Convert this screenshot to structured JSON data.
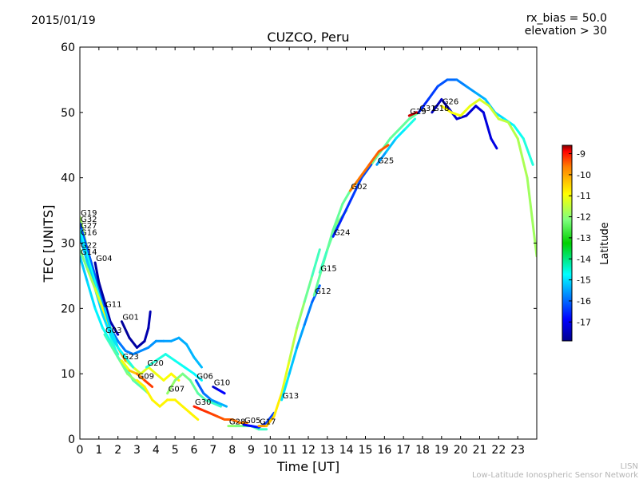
{
  "header": {
    "date": "2015/01/19",
    "rx_bias": "rx_bias = 50.0",
    "elevation": "elevation > 30"
  },
  "footer": {
    "line1": "LISN",
    "line2": "Low-Latitude Ionospheric Sensor Network"
  },
  "colors": {
    "colormap": [
      "#00008f",
      "#0000ff",
      "#007fff",
      "#00ffff",
      "#7fff7f",
      "#ffff00",
      "#ff7f00",
      "#ff0000",
      "#7f0000"
    ],
    "footer_text": "#b4b4b4"
  },
  "chart_data": {
    "type": "line",
    "title": "CUZCO, Peru",
    "xlabel": "Time [UT]",
    "ylabel": "TEC [UNITS]",
    "xlim": [
      0,
      24
    ],
    "ylim": [
      0,
      60
    ],
    "xticks": [
      "0",
      "1",
      "2",
      "3",
      "4",
      "5",
      "6",
      "7",
      "8",
      "9",
      "10",
      "11",
      "12",
      "13",
      "14",
      "15",
      "16",
      "17",
      "18",
      "19",
      "20",
      "21",
      "22",
      "23"
    ],
    "yticks": [
      "0",
      "10",
      "20",
      "30",
      "40",
      "50",
      "60"
    ],
    "colorbar": {
      "label": "Latitude",
      "range": [
        -17.9,
        -8.6
      ],
      "ticks": [
        "-9",
        "-10",
        "-11",
        "-12",
        "-13",
        "-14",
        "-15",
        "-16",
        "-17"
      ]
    },
    "series": [
      {
        "name": "G19",
        "lat_start": -13.0,
        "lat_end": -12.0,
        "points": [
          [
            0,
            34
          ],
          [
            0.4,
            29
          ],
          [
            0.8,
            25
          ],
          [
            1.2,
            21
          ],
          [
            1.6,
            17
          ],
          [
            2.0,
            14
          ],
          [
            2.4,
            12
          ],
          [
            2.8,
            11
          ],
          [
            3.2,
            10
          ],
          [
            3.6,
            11
          ],
          [
            4.0,
            10
          ],
          [
            4.4,
            9
          ],
          [
            4.8,
            10
          ],
          [
            5.2,
            9
          ]
        ]
      },
      {
        "name": "G32",
        "lat_start": -16.0,
        "lat_end": -15.0,
        "points": [
          [
            0,
            33
          ],
          [
            0.4,
            29
          ],
          [
            0.8,
            25
          ],
          [
            1.2,
            21
          ],
          [
            1.6,
            17
          ],
          [
            2.0,
            15
          ],
          [
            2.4,
            13.5
          ],
          [
            2.8,
            13
          ],
          [
            3.2,
            13.5
          ],
          [
            3.6,
            14
          ],
          [
            4.0,
            15
          ],
          [
            4.4,
            15
          ],
          [
            4.8,
            15
          ],
          [
            5.2,
            15.5
          ],
          [
            5.6,
            14.5
          ],
          [
            6.0,
            12.5
          ],
          [
            6.4,
            11
          ]
        ]
      },
      {
        "name": "G27",
        "lat_start": -14.5,
        "lat_end": -13.5,
        "points": [
          [
            0,
            32
          ],
          [
            0.4,
            28
          ],
          [
            0.8,
            24
          ],
          [
            1.2,
            20
          ],
          [
            1.6,
            16
          ],
          [
            2.0,
            12.5
          ],
          [
            2.4,
            11
          ],
          [
            2.8,
            9
          ],
          [
            3.2,
            8
          ],
          [
            3.6,
            7
          ]
        ]
      },
      {
        "name": "G16",
        "lat_start": -15.0,
        "lat_end": -14.5,
        "points": [
          [
            0,
            31
          ],
          [
            0.4,
            27
          ],
          [
            0.8,
            23
          ],
          [
            1.2,
            19
          ],
          [
            1.6,
            16
          ],
          [
            2.0,
            14
          ],
          [
            2.4,
            12
          ]
        ]
      },
      {
        "name": "G22",
        "lat_start": -13.5,
        "lat_end": -11.0,
        "points": [
          [
            0,
            29
          ],
          [
            0.4,
            26
          ],
          [
            0.8,
            23
          ],
          [
            1.2,
            20
          ],
          [
            1.6,
            17
          ],
          [
            2.0,
            14
          ],
          [
            2.4,
            12
          ]
        ]
      },
      {
        "name": "G14",
        "lat_start": -15.0,
        "lat_end": -14.0,
        "points": [
          [
            0,
            28
          ],
          [
            0.4,
            24
          ],
          [
            0.8,
            20
          ],
          [
            1.2,
            17
          ],
          [
            1.6,
            15
          ],
          [
            2.0,
            13
          ]
        ]
      },
      {
        "name": "G04",
        "lat_start": -17.8,
        "lat_end": -17.5,
        "points": [
          [
            0.8,
            27
          ],
          [
            1.0,
            24
          ],
          [
            1.3,
            21
          ],
          [
            1.6,
            18
          ],
          [
            2.0,
            16
          ]
        ]
      },
      {
        "name": "G11",
        "lat_start": -15.0,
        "lat_end": -14.0,
        "points": [
          [
            1.3,
            20
          ],
          [
            1.6,
            17
          ],
          [
            2.0,
            14
          ],
          [
            2.4,
            12.5
          ],
          [
            2.8,
            11
          ]
        ]
      },
      {
        "name": "G01",
        "lat_start": -17.8,
        "lat_end": -17.5,
        "points": [
          [
            2.2,
            18
          ],
          [
            2.6,
            15.5
          ],
          [
            3.0,
            14
          ],
          [
            3.4,
            15
          ],
          [
            3.6,
            17
          ],
          [
            3.7,
            19.5
          ]
        ]
      },
      {
        "name": "G03",
        "lat_start": -14.0,
        "lat_end": -13.0,
        "points": [
          [
            1.3,
            16
          ],
          [
            1.7,
            14
          ],
          [
            2.1,
            12
          ],
          [
            2.5,
            10
          ],
          [
            2.9,
            9
          ]
        ]
      },
      {
        "name": "G23",
        "lat_start": -12.5,
        "lat_end": -10.0,
        "points": [
          [
            2.2,
            12
          ],
          [
            2.6,
            10.5
          ],
          [
            3.0,
            10
          ],
          [
            3.4,
            9
          ],
          [
            3.8,
            8
          ]
        ]
      },
      {
        "name": "G09",
        "lat_start": -12.0,
        "lat_end": -12.0,
        "points": [
          [
            3.0,
            9
          ],
          [
            3.4,
            8
          ],
          [
            3.8,
            6
          ],
          [
            4.2,
            5
          ],
          [
            4.6,
            6
          ],
          [
            5.0,
            6
          ],
          [
            5.4,
            5
          ],
          [
            5.8,
            4
          ],
          [
            6.2,
            3
          ]
        ]
      },
      {
        "name": "G20",
        "lat_start": -14.0,
        "lat_end": -14.5,
        "points": [
          [
            3.5,
            11
          ],
          [
            4.0,
            12
          ],
          [
            4.5,
            13
          ],
          [
            5.0,
            12
          ],
          [
            5.5,
            11
          ],
          [
            6.0,
            10
          ],
          [
            6.4,
            9
          ]
        ]
      },
      {
        "name": "G07",
        "lat_start": -13.0,
        "lat_end": -14.0,
        "points": [
          [
            4.6,
            7
          ],
          [
            5.0,
            9
          ],
          [
            5.4,
            10
          ],
          [
            5.8,
            9
          ],
          [
            6.2,
            7
          ],
          [
            6.6,
            6
          ],
          [
            7.0,
            5.5
          ],
          [
            7.4,
            5
          ]
        ]
      },
      {
        "name": "G06",
        "lat_start": -16.0,
        "lat_end": -15.0,
        "points": [
          [
            6.1,
            9
          ],
          [
            6.5,
            7
          ],
          [
            6.9,
            6
          ],
          [
            7.3,
            5.5
          ],
          [
            7.7,
            5
          ]
        ]
      },
      {
        "name": "G10",
        "lat_start": -17.5,
        "lat_end": -16.5,
        "points": [
          [
            7.0,
            8
          ],
          [
            7.3,
            7.5
          ],
          [
            7.6,
            7
          ]
        ]
      },
      {
        "name": "G30",
        "lat_start": -10.0,
        "lat_end": -11.0,
        "points": [
          [
            6.0,
            5
          ],
          [
            6.4,
            4.5
          ],
          [
            6.8,
            4
          ],
          [
            7.2,
            3.5
          ],
          [
            7.6,
            3
          ],
          [
            8.0,
            3
          ],
          [
            8.4,
            2.5
          ],
          [
            8.8,
            2.5
          ]
        ]
      },
      {
        "name": "G28",
        "lat_start": -13.0,
        "lat_end": -14.0,
        "points": [
          [
            7.8,
            2
          ],
          [
            8.2,
            2
          ],
          [
            8.6,
            2
          ],
          [
            9.0,
            2
          ],
          [
            9.4,
            1.5
          ],
          [
            9.8,
            1.5
          ]
        ]
      },
      {
        "name": "G05",
        "lat_start": -17.0,
        "lat_end": -16.0,
        "points": [
          [
            8.6,
            2.2
          ],
          [
            9.0,
            2.0
          ],
          [
            9.4,
            1.8
          ],
          [
            9.8,
            2.5
          ],
          [
            10.2,
            4
          ]
        ]
      },
      {
        "name": "G17",
        "lat_start": -11.0,
        "lat_end": -14.0,
        "points": [
          [
            9.4,
            2
          ],
          [
            9.8,
            2
          ],
          [
            10.2,
            3.5
          ],
          [
            10.6,
            7
          ],
          [
            11.0,
            12
          ],
          [
            11.4,
            17
          ],
          [
            11.8,
            21
          ],
          [
            12.2,
            25
          ],
          [
            12.6,
            29
          ]
        ]
      },
      {
        "name": "G13",
        "lat_start": -14.5,
        "lat_end": -16.0,
        "points": [
          [
            10.6,
            6
          ],
          [
            11.0,
            10
          ],
          [
            11.4,
            14
          ],
          [
            11.8,
            17.5
          ],
          [
            12.2,
            21
          ],
          [
            12.6,
            23.5
          ]
        ]
      },
      {
        "name": "G12",
        "lat_start": -13.5,
        "lat_end": -13.5,
        "points": [
          [
            12.3,
            22
          ],
          [
            12.8,
            27
          ],
          [
            13.3,
            32
          ],
          [
            13.8,
            36
          ],
          [
            14.3,
            38.5
          ],
          [
            14.8,
            40
          ],
          [
            15.3,
            42
          ],
          [
            15.8,
            44
          ],
          [
            16.3,
            46
          ],
          [
            16.8,
            47.5
          ],
          [
            17.3,
            49
          ],
          [
            17.8,
            50
          ]
        ]
      },
      {
        "name": "G15",
        "lat_start": -14.0,
        "lat_end": -13.0,
        "points": [
          [
            12.6,
            25.5
          ],
          [
            13.0,
            29
          ],
          [
            13.5,
            33
          ],
          [
            14.0,
            35
          ]
        ]
      },
      {
        "name": "G24",
        "lat_start": -16.5,
        "lat_end": -16.0,
        "points": [
          [
            13.3,
            31
          ],
          [
            13.8,
            34
          ],
          [
            14.3,
            37
          ],
          [
            14.8,
            40
          ],
          [
            15.3,
            42
          ]
        ]
      },
      {
        "name": "G02",
        "lat_start": -11.0,
        "lat_end": -10.5,
        "points": [
          [
            14.2,
            38
          ],
          [
            14.7,
            40
          ],
          [
            15.2,
            42
          ],
          [
            15.7,
            44
          ],
          [
            16.2,
            45
          ]
        ]
      },
      {
        "name": "G25",
        "lat_start": -15.5,
        "lat_end": -14.0,
        "points": [
          [
            15.6,
            42
          ],
          [
            16.1,
            44
          ],
          [
            16.6,
            46
          ],
          [
            17.1,
            47.5
          ],
          [
            17.6,
            49
          ]
        ]
      },
      {
        "name": "G29",
        "lat_start": -9.5,
        "lat_end": -9.0,
        "points": [
          [
            17.3,
            49.5
          ],
          [
            17.7,
            50
          ]
        ]
      },
      {
        "name": "G31",
        "lat_start": -16.5,
        "lat_end": -14.0,
        "points": [
          [
            17.8,
            50
          ],
          [
            18.3,
            52
          ],
          [
            18.8,
            54
          ],
          [
            19.3,
            55
          ],
          [
            19.8,
            55
          ],
          [
            20.3,
            54
          ],
          [
            20.8,
            53
          ],
          [
            21.3,
            52
          ],
          [
            21.8,
            50
          ],
          [
            22.3,
            49
          ],
          [
            22.8,
            48
          ],
          [
            23.3,
            46
          ],
          [
            23.8,
            42
          ]
        ]
      },
      {
        "name": "G18",
        "lat_start": -17.5,
        "lat_end": -17.0,
        "points": [
          [
            18.5,
            50
          ],
          [
            19.0,
            52
          ],
          [
            19.4,
            50.5
          ],
          [
            19.8,
            49
          ],
          [
            20.3,
            49.5
          ],
          [
            20.8,
            51
          ],
          [
            21.2,
            50
          ],
          [
            21.6,
            46
          ],
          [
            21.9,
            44.5
          ]
        ]
      },
      {
        "name": "G26",
        "lat_start": -12.0,
        "lat_end": -13.0,
        "points": [
          [
            19.0,
            51
          ],
          [
            19.5,
            50
          ],
          [
            20.0,
            49.5
          ],
          [
            20.5,
            51
          ],
          [
            21.0,
            52
          ],
          [
            21.5,
            51
          ],
          [
            22.0,
            49
          ],
          [
            22.5,
            48.5
          ],
          [
            23.0,
            46
          ],
          [
            23.5,
            40
          ],
          [
            24.0,
            28
          ]
        ]
      }
    ]
  }
}
